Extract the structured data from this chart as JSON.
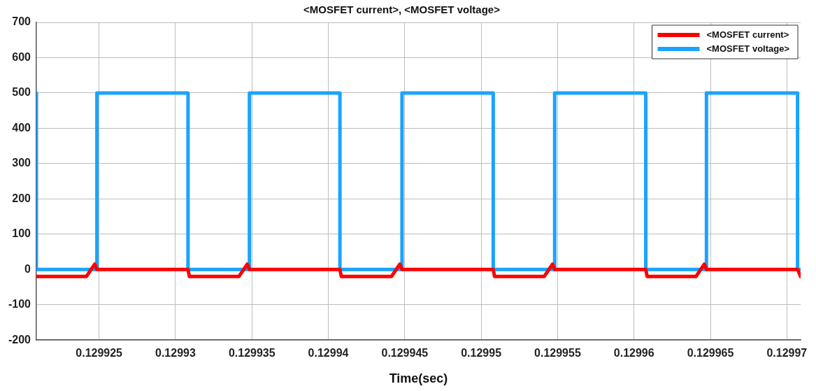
{
  "chart_data": {
    "type": "line",
    "title": "<MOSFET current>, <MOSFET voltage>",
    "xlabel": "Time(sec)",
    "xlim": [
      0.1299209,
      0.1299709
    ],
    "xticks": [
      0.129925,
      0.12993,
      0.129935,
      0.12994,
      0.129945,
      0.12995,
      0.129955,
      0.12996,
      0.129965,
      0.12997
    ],
    "ylim": [
      -200,
      700
    ],
    "yticks": [
      -200,
      -100,
      0,
      100,
      200,
      300,
      400,
      500,
      600,
      700
    ],
    "grid": true,
    "legend": "top right",
    "line_style": "solid",
    "marker": "none",
    "series": [
      {
        "name": "<MOSFET current>",
        "color": "#ff0000",
        "x": [
          0.1299209,
          0.12992417,
          0.12992472,
          0.12992486,
          0.12993082,
          0.12993091,
          0.12993415,
          0.1299347,
          0.12993484,
          0.12994076,
          0.12994085,
          0.12994413,
          0.12994468,
          0.12994482,
          0.12995079,
          0.12995088,
          0.12995412,
          0.12995467,
          0.12995481,
          0.12996077,
          0.12996086,
          0.12996405,
          0.1299646,
          0.12996474,
          0.1299707,
          0.1299709
        ],
        "values": [
          -20,
          -20,
          15,
          0,
          0,
          -20,
          -20,
          15,
          0,
          0,
          -20,
          -20,
          15,
          0,
          0,
          -20,
          -20,
          15,
          0,
          0,
          -20,
          -20,
          15,
          0,
          0,
          -20
        ]
      },
      {
        "name": "<MOSFET voltage>",
        "color": "#1aa3ff",
        "x": [
          0.1299209,
          0.1299209,
          0.12992486,
          0.12992486,
          0.12993082,
          0.12993082,
          0.12993484,
          0.12993484,
          0.12994076,
          0.12994076,
          0.12994482,
          0.12994482,
          0.12995079,
          0.12995079,
          0.12995481,
          0.12995481,
          0.12996077,
          0.12996077,
          0.12996474,
          0.12996474,
          0.1299707,
          0.1299707,
          0.1299709
        ],
        "values": [
          500,
          0,
          0,
          500,
          500,
          0,
          0,
          500,
          500,
          0,
          0,
          500,
          500,
          0,
          0,
          500,
          500,
          0,
          0,
          500,
          500,
          0,
          0
        ]
      }
    ]
  }
}
